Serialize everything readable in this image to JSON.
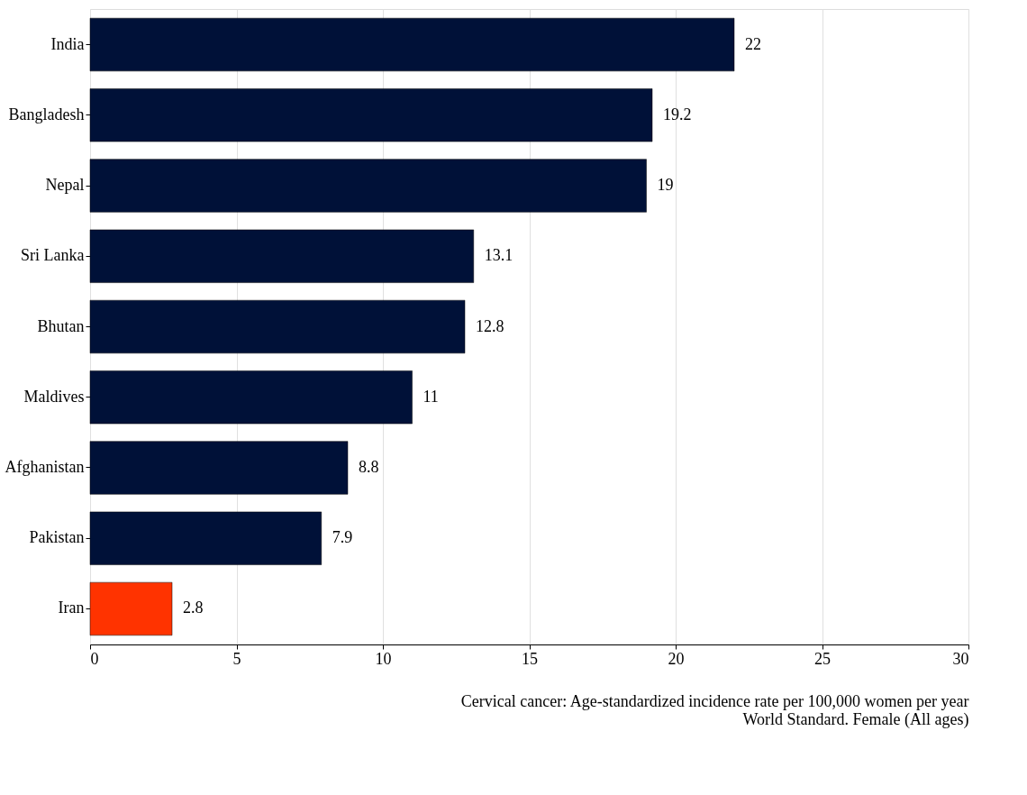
{
  "chart_data": {
    "type": "bar",
    "orientation": "horizontal",
    "categories": [
      "India",
      "Bangladesh",
      "Nepal",
      "Sri Lanka",
      "Bhutan",
      "Maldives",
      "Afghanistan",
      "Pakistan",
      "Iran"
    ],
    "values": [
      22,
      19.2,
      19,
      13.1,
      12.8,
      11,
      8.8,
      7.9,
      2.8
    ],
    "colors": [
      "#001138",
      "#001138",
      "#001138",
      "#001138",
      "#001138",
      "#001138",
      "#001138",
      "#001138",
      "#ff3300"
    ],
    "xlim": [
      0,
      30
    ],
    "xticks": [
      0,
      5,
      10,
      15,
      20,
      25,
      30
    ],
    "grid": "x",
    "data_labels": true,
    "legend": false,
    "annotations": [
      "Cervical cancer: Age-standardized incidence rate per 100,000 women per year",
      "World Standard. Female (All ages)"
    ]
  }
}
